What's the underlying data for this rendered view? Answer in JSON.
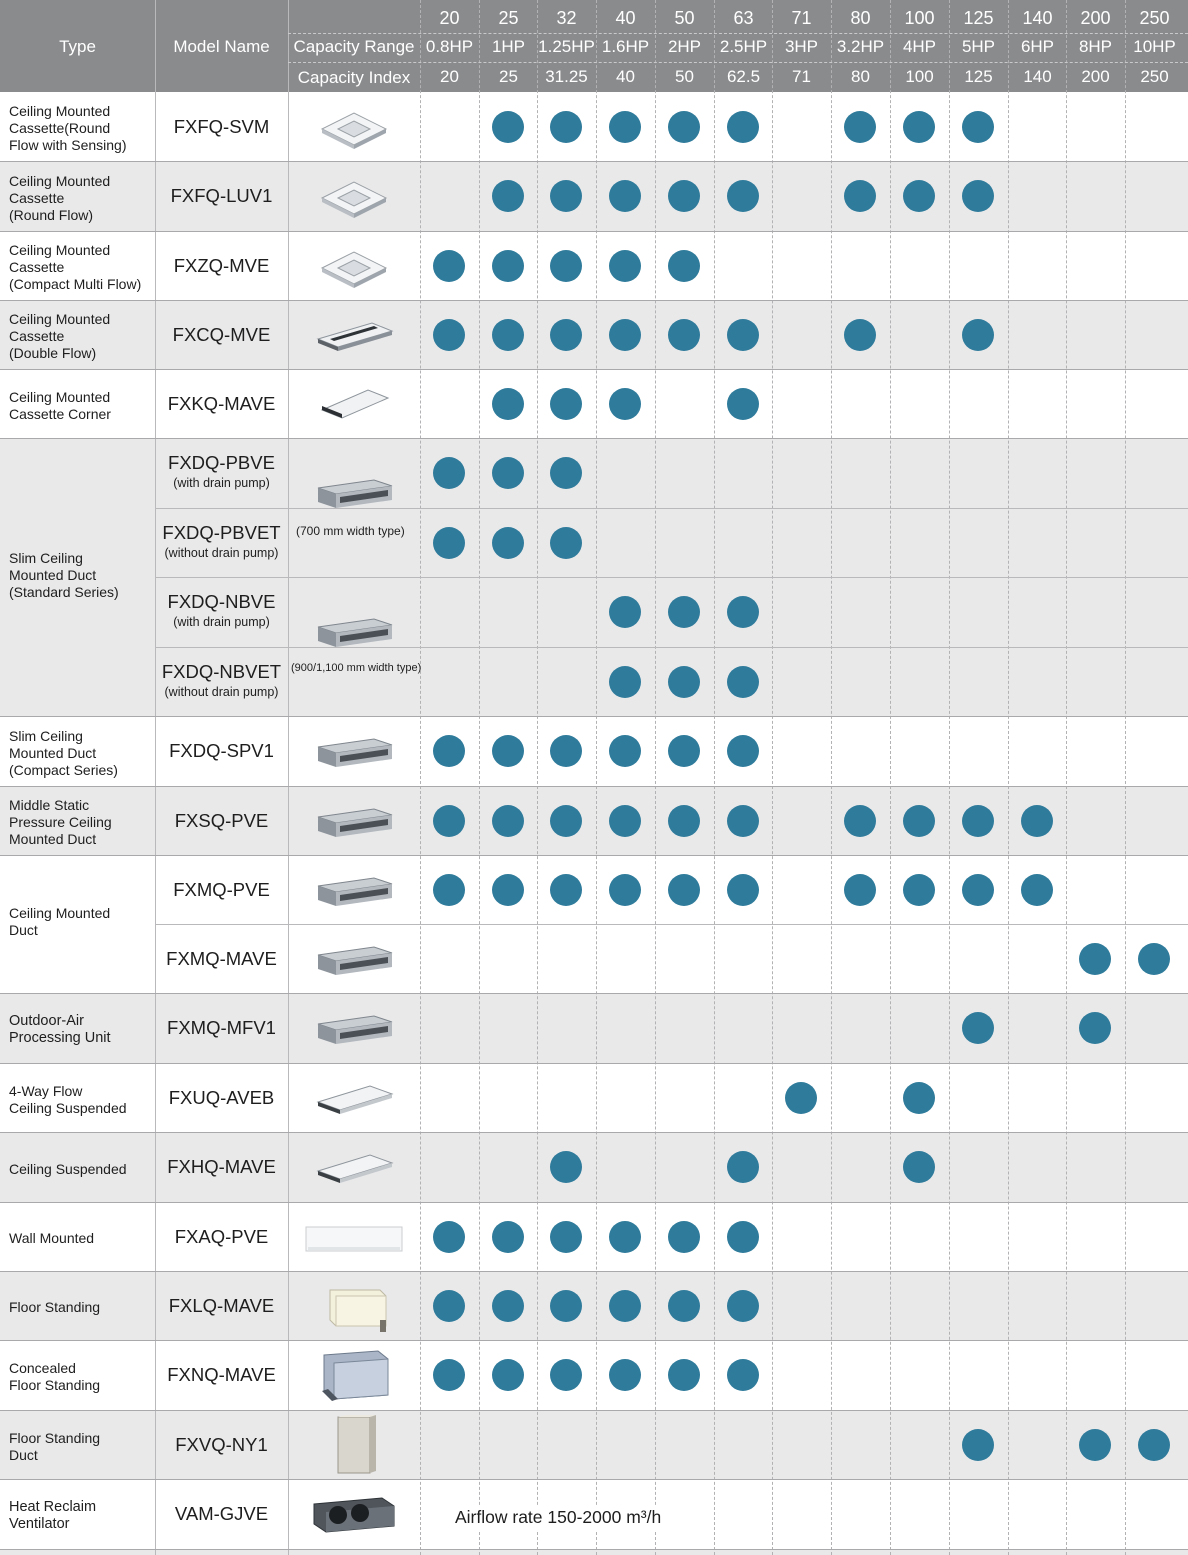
{
  "header": {
    "type_label": "Type",
    "model_label": "Model Name",
    "capacity_range_label": "Capacity Range",
    "capacity_index_label": "Capacity Index",
    "classes": [
      {
        "code": "20",
        "hp": "0.8HP",
        "index": "20"
      },
      {
        "code": "25",
        "hp": "1HP",
        "index": "25"
      },
      {
        "code": "32",
        "hp": "1.25HP",
        "index": "31.25"
      },
      {
        "code": "40",
        "hp": "1.6HP",
        "index": "40"
      },
      {
        "code": "50",
        "hp": "2HP",
        "index": "50"
      },
      {
        "code": "63",
        "hp": "2.5HP",
        "index": "62.5"
      },
      {
        "code": "71",
        "hp": "3HP",
        "index": "71"
      },
      {
        "code": "80",
        "hp": "3.2HP",
        "index": "80"
      },
      {
        "code": "100",
        "hp": "4HP",
        "index": "100"
      },
      {
        "code": "125",
        "hp": "5HP",
        "index": "125"
      },
      {
        "code": "140",
        "hp": "6HP",
        "index": "140"
      },
      {
        "code": "200",
        "hp": "8HP",
        "index": "200"
      },
      {
        "code": "250",
        "hp": "10HP",
        "index": "250"
      }
    ]
  },
  "colors": {
    "header_bg": "#8a8b8d",
    "dot": "#2f7b9b",
    "shaded_row": "#e9e9ea",
    "white_row": "#ffffff"
  },
  "groups": [
    {
      "type": "Ceiling Mounted Cassette(Round Flow with Sensing)",
      "type_lines": [
        "Ceiling Mounted",
        "Cassette(Round",
        "Flow with Sensing)"
      ],
      "bold": false,
      "models": [
        {
          "name": "FXFQ-SVM",
          "sub": "",
          "avail": [
            0,
            1,
            1,
            1,
            1,
            1,
            0,
            1,
            1,
            1,
            0,
            0,
            0
          ]
        }
      ]
    },
    {
      "type": "Ceiling Mounted Cassette (Round Flow)",
      "type_lines": [
        "Ceiling Mounted",
        "Cassette",
        "(Round Flow)"
      ],
      "bold": false,
      "models": [
        {
          "name": "FXFQ-LUV1",
          "sub": "",
          "avail": [
            0,
            1,
            1,
            1,
            1,
            1,
            0,
            1,
            1,
            1,
            0,
            0,
            0
          ]
        }
      ]
    },
    {
      "type": "Ceiling Mounted Cassette (Compact Multi Flow)",
      "type_lines": [
        "Ceiling Mounted",
        "Cassette",
        "(Compact Multi Flow)"
      ],
      "bold": false,
      "models": [
        {
          "name": "FXZQ-MVE",
          "sub": "",
          "avail": [
            1,
            1,
            1,
            1,
            1,
            0,
            0,
            0,
            0,
            0,
            0,
            0,
            0
          ]
        }
      ]
    },
    {
      "type": "Ceiling Mounted Cassette (Double Flow)",
      "type_lines": [
        "Ceiling Mounted",
        "Cassette",
        "(Double Flow)"
      ],
      "bold": false,
      "models": [
        {
          "name": "FXCQ-MVE",
          "sub": "",
          "avail": [
            1,
            1,
            1,
            1,
            1,
            1,
            0,
            1,
            0,
            1,
            0,
            0,
            0
          ]
        }
      ]
    },
    {
      "type": "Ceiling Mounted Cassette Corner",
      "type_lines": [
        "Ceiling Mounted",
        "Cassette Corner"
      ],
      "bold": false,
      "models": [
        {
          "name": "FXKQ-MAVE",
          "sub": "",
          "avail": [
            0,
            1,
            1,
            1,
            0,
            1,
            0,
            0,
            0,
            0,
            0,
            0,
            0
          ]
        }
      ]
    },
    {
      "type": "Slim Ceiling Mounted Duct (Standard Series)",
      "type_lines": [
        "Slim Ceiling",
        "Mounted Duct",
        "(Standard Series)"
      ],
      "bold": false,
      "notes": [
        "(700 mm width type)",
        "(900/1,100 mm width type)"
      ],
      "models": [
        {
          "name": "FXDQ-PBVE",
          "sub": "(with drain pump)",
          "avail": [
            1,
            1,
            1,
            0,
            0,
            0,
            0,
            0,
            0,
            0,
            0,
            0,
            0
          ]
        },
        {
          "name": "FXDQ-PBVET",
          "sub": "(without drain pump)",
          "avail": [
            1,
            1,
            1,
            0,
            0,
            0,
            0,
            0,
            0,
            0,
            0,
            0,
            0
          ]
        },
        {
          "name": "FXDQ-NBVE",
          "sub": "(with drain pump)",
          "avail": [
            0,
            0,
            0,
            1,
            1,
            1,
            0,
            0,
            0,
            0,
            0,
            0,
            0
          ]
        },
        {
          "name": "FXDQ-NBVET",
          "sub": "(without drain pump)",
          "avail": [
            0,
            0,
            0,
            1,
            1,
            1,
            0,
            0,
            0,
            0,
            0,
            0,
            0
          ]
        }
      ]
    },
    {
      "type": "Slim Ceiling Mounted Duct (Compact Series)",
      "type_lines": [
        "Slim Ceiling",
        "Mounted Duct",
        "(Compact Series)"
      ],
      "bold": false,
      "models": [
        {
          "name": "FXDQ-SPV1",
          "sub": "",
          "avail": [
            1,
            1,
            1,
            1,
            1,
            1,
            0,
            0,
            0,
            0,
            0,
            0,
            0
          ]
        }
      ]
    },
    {
      "type": "Middle Static Pressure Ceiling Mounted Duct",
      "type_lines": [
        "Middle Static",
        "Pressure Ceiling",
        "Mounted Duct"
      ],
      "bold": false,
      "models": [
        {
          "name": "FXSQ-PVE",
          "sub": "",
          "avail": [
            1,
            1,
            1,
            1,
            1,
            1,
            0,
            1,
            1,
            1,
            1,
            0,
            0
          ]
        }
      ]
    },
    {
      "type": "Ceiling Mounted Duct",
      "type_lines": [
        "Ceiling Mounted",
        "Duct"
      ],
      "bold": false,
      "models": [
        {
          "name": "FXMQ-PVE",
          "sub": "",
          "avail": [
            1,
            1,
            1,
            1,
            1,
            1,
            0,
            1,
            1,
            1,
            1,
            0,
            0
          ]
        },
        {
          "name": "FXMQ-MAVE",
          "sub": "",
          "avail": [
            0,
            0,
            0,
            0,
            0,
            0,
            0,
            0,
            0,
            0,
            0,
            1,
            1
          ]
        }
      ]
    },
    {
      "type": "Outdoor-Air Processing Unit",
      "type_lines": [
        "Outdoor-Air",
        "Processing Unit"
      ],
      "bold": true,
      "models": [
        {
          "name": "FXMQ-MFV1",
          "sub": "",
          "avail": [
            0,
            0,
            0,
            0,
            0,
            0,
            0,
            0,
            0,
            1,
            0,
            1,
            0
          ]
        }
      ]
    },
    {
      "type": "4-Way Flow Ceiling Suspended",
      "type_lines": [
        "4-Way Flow",
        "Ceiling Suspended"
      ],
      "bold": false,
      "models": [
        {
          "name": "FXUQ-AVEB",
          "sub": "",
          "avail": [
            0,
            0,
            0,
            0,
            0,
            0,
            1,
            0,
            1,
            0,
            0,
            0,
            0
          ]
        }
      ]
    },
    {
      "type": "Ceiling Suspended",
      "type_lines": [
        "Ceiling Suspended"
      ],
      "bold": false,
      "models": [
        {
          "name": "FXHQ-MAVE",
          "sub": "",
          "avail": [
            0,
            0,
            1,
            0,
            0,
            1,
            0,
            0,
            1,
            0,
            0,
            0,
            0
          ]
        }
      ]
    },
    {
      "type": "Wall Mounted",
      "type_lines": [
        "Wall Mounted"
      ],
      "bold": false,
      "models": [
        {
          "name": "FXAQ-PVE",
          "sub": "",
          "avail": [
            1,
            1,
            1,
            1,
            1,
            1,
            0,
            0,
            0,
            0,
            0,
            0,
            0
          ]
        }
      ]
    },
    {
      "type": "Floor Standing",
      "type_lines": [
        "Floor Standing"
      ],
      "bold": false,
      "models": [
        {
          "name": "FXLQ-MAVE",
          "sub": "",
          "avail": [
            1,
            1,
            1,
            1,
            1,
            1,
            0,
            0,
            0,
            0,
            0,
            0,
            0
          ]
        }
      ]
    },
    {
      "type": "Concealed Floor Standing",
      "type_lines": [
        "Concealed",
        "Floor Standing"
      ],
      "bold": false,
      "models": [
        {
          "name": "FXNQ-MAVE",
          "sub": "",
          "avail": [
            1,
            1,
            1,
            1,
            1,
            1,
            0,
            0,
            0,
            0,
            0,
            0,
            0
          ]
        }
      ]
    },
    {
      "type": "Floor Standing Duct",
      "type_lines": [
        "Floor Standing",
        "Duct"
      ],
      "bold": false,
      "models": [
        {
          "name": "FXVQ-NY1",
          "sub": "",
          "avail": [
            0,
            0,
            0,
            0,
            0,
            0,
            0,
            0,
            0,
            1,
            0,
            1,
            1
          ]
        }
      ]
    },
    {
      "type": "Heat Reclaim Ventilator",
      "type_lines": [
        "Heat Reclaim",
        "Ventilator"
      ],
      "bold": true,
      "airflow": "Airflow rate 150-2000 m³/h",
      "models": [
        {
          "name": "VAM-GJVE",
          "sub": "",
          "avail": [
            0,
            0,
            0,
            0,
            0,
            0,
            0,
            0,
            0,
            0,
            0,
            0,
            0
          ]
        }
      ]
    }
  ]
}
